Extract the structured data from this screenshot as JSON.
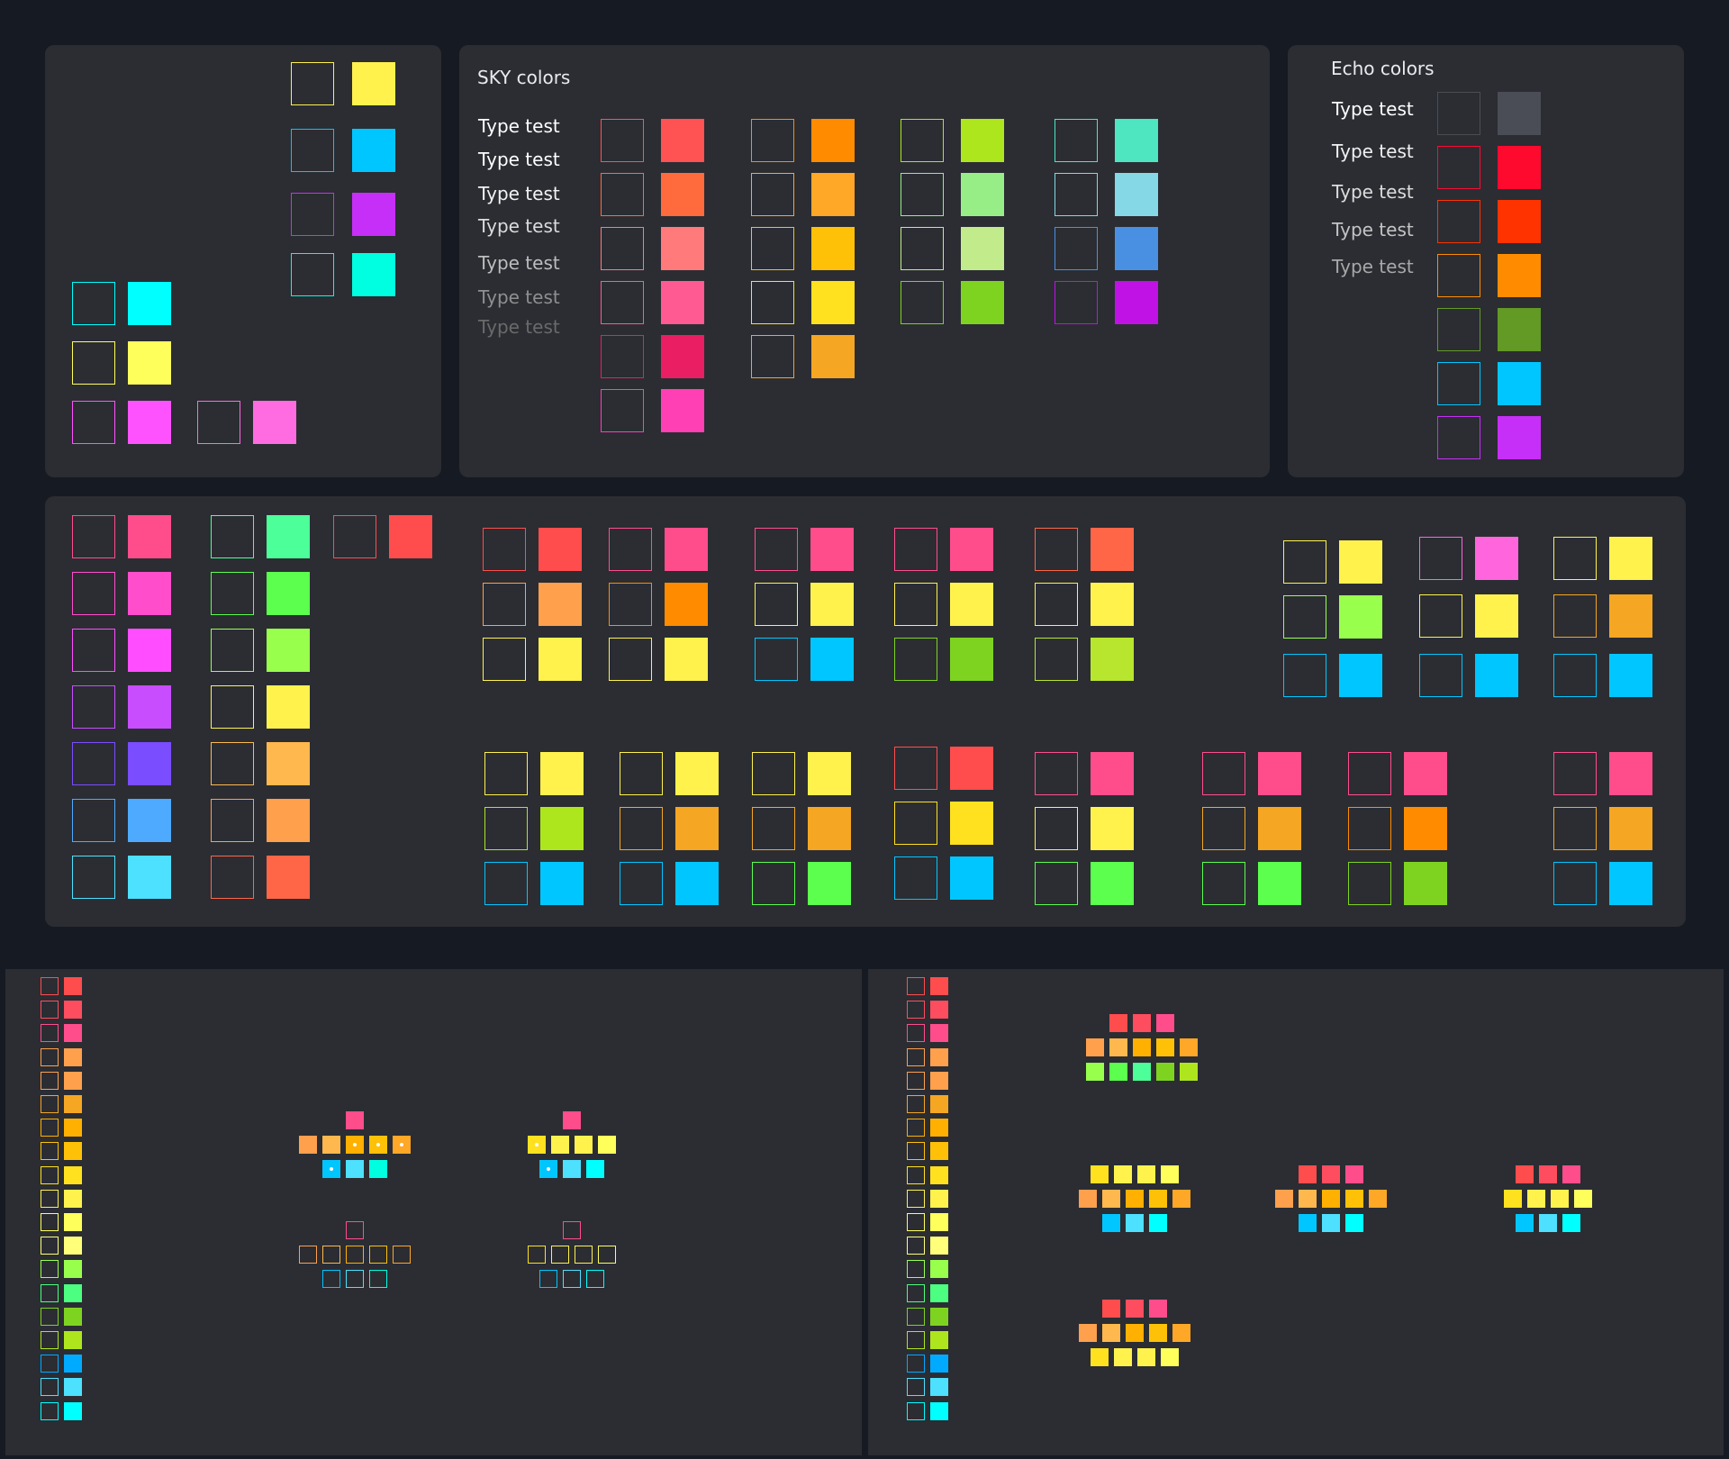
{
  "sky": {
    "title": "SKY colors",
    "labels": [
      {
        "text": "Type test",
        "color": "#ffffff"
      },
      {
        "text": "Type test",
        "color": "#ffffff"
      },
      {
        "text": "Type test",
        "color": "#f2f2f2"
      },
      {
        "text": "Type test",
        "color": "#dcdcdc"
      },
      {
        "text": "Type test",
        "color": "#bdbdbd"
      },
      {
        "text": "Type test",
        "color": "#8f8f8f"
      },
      {
        "text": "Type test",
        "color": "#6a6a6a"
      }
    ],
    "columns": [
      [
        "#ff5252",
        "#ff6b3d",
        "#ff7b7b",
        "#ff5a91",
        "#e91e63",
        "#ff40b4"
      ],
      [
        "#ff8c00",
        "#ffa726",
        "#ffc107",
        "#ffe11f",
        "#f5a623"
      ],
      [
        "#aee61e",
        "#98ee86",
        "#c2ec8c",
        "#7ed321"
      ],
      [
        "#4de6c1",
        "#85d8e5",
        "#4a90e2",
        "#c012e5"
      ]
    ]
  },
  "echo": {
    "title": "Echo colors",
    "labels": [
      {
        "text": "Type test",
        "color": "#ffffff"
      },
      {
        "text": "Type test",
        "color": "#f0f0f0"
      },
      {
        "text": "Type test",
        "color": "#dddddd"
      },
      {
        "text": "Type test",
        "color": "#c4c4c4"
      },
      {
        "text": "Type test",
        "color": "#a8a8a8"
      }
    ],
    "swatches": [
      "#4a4d55",
      "#ff0a2f",
      "#ff3300",
      "#ff8c00",
      "#629a25",
      "#00c6ff",
      "#c62ff7"
    ]
  },
  "topleft": {
    "column": [
      "#fff24d",
      "#00c6ff",
      "#c62ff7",
      "#00ffe0"
    ],
    "rows": [
      "#00ffff",
      "#ffff5c"
    ],
    "pair": [
      "#ff52ff",
      "#ff6be0"
    ]
  },
  "middle": {
    "col1": [
      "#ff4d8c",
      "#ff4dcc",
      "#ff4dff",
      "#c84dff",
      "#7a4dff",
      "#4daaff",
      "#4de0ff"
    ],
    "col2": [
      "#4dff99",
      "#5cff4d",
      "#99ff4d",
      "#fff24d",
      "#ffb84d",
      "#ffa04d",
      "#ff6647"
    ],
    "single": "#ff4d4d",
    "groups_top": [
      [
        "#ff4d4d",
        "#ffa04d",
        "#fff24d"
      ],
      [
        "#ff4d8c",
        "#ff8c00",
        "#fff24d"
      ],
      [
        "#ff4d8c",
        "#fff24d",
        "#00c6ff"
      ],
      [
        "#ff4d8c",
        "#fff24d",
        "#7ed321"
      ],
      [
        "#ff6647",
        "#fff24d",
        "#b8e62e"
      ],
      [
        "#fff24d",
        "#99ff4d",
        "#00c6ff"
      ],
      [
        "#ff66dd",
        "#fff24d",
        "#00c6ff"
      ],
      [
        "#fff24d",
        "#f5a623",
        "#00c6ff"
      ]
    ],
    "groups_bottom": [
      [
        "#fff24d",
        "#aee61e",
        "#00c6ff"
      ],
      [
        "#fff24d",
        "#f5a623",
        "#00c6ff"
      ],
      [
        "#fff24d",
        "#f5a623",
        "#5cff4d"
      ],
      [
        "#ff4d4d",
        "#ffe11f",
        "#00c6ff"
      ],
      [
        "#ff4d8c",
        "#fff24d",
        "#5cff4d"
      ],
      [
        "#ff4d8c",
        "#f5a623",
        "#5cff4d"
      ],
      [
        "#ff4d8c",
        "#ff8c00",
        "#7ed321"
      ],
      [
        "#ff4d8c",
        "#f5a623",
        "#00c6ff"
      ]
    ]
  },
  "strip": [
    "#ff4d4d",
    "#ff4d60",
    "#ff4d8c",
    "#ffa04d",
    "#ffa04d",
    "#f5a623",
    "#ffb000",
    "#ffc107",
    "#ffe11f",
    "#fff24d",
    "#ffff5c",
    "#ffff7a",
    "#99ff4d",
    "#4dff80",
    "#7ed321",
    "#aee61e",
    "#00aaff",
    "#4de0ff",
    "#00ffff"
  ],
  "clusters": {
    "left": [
      {
        "top": [
          "#ff4d8c"
        ],
        "mid": [
          "#ffa04d",
          "#ffb84d",
          "#ffb000",
          "#ffc107",
          "#ffa726"
        ],
        "bot": [
          "#00c6ff",
          "#4de0ff",
          "#00ffe0"
        ]
      },
      {
        "top": [
          "#ff4d8c"
        ],
        "mid": [
          "#ffe11f",
          "#fff24d",
          "#fff24d",
          "#ffff5c"
        ],
        "bot": [
          "#00c6ff",
          "#4de0ff",
          "#00ffff"
        ]
      }
    ],
    "right": [
      {
        "top": [
          "#ff4d4d",
          "#ff4d60",
          "#ff4d8c"
        ],
        "mid": [
          "#ffa04d",
          "#ffb84d",
          "#ffb000",
          "#ffc107",
          "#ffa726"
        ],
        "bot": [
          "#99ff4d",
          "#5cff4d",
          "#4dff99",
          "#7ed321",
          "#aee61e"
        ]
      },
      {
        "top": [
          "#ffe11f",
          "#fff24d",
          "#fff24d",
          "#ffff5c"
        ],
        "mid": [
          "#ffa04d",
          "#ffb84d",
          "#ffb000",
          "#ffc107",
          "#ffa726"
        ],
        "bot": [
          "#00c6ff",
          "#4de0ff",
          "#00ffff"
        ]
      },
      {
        "top": [
          "#ff4d4d",
          "#ff4d60",
          "#ff4d8c"
        ],
        "mid": [
          "#ffa04d",
          "#ffb84d",
          "#ffb000",
          "#ffc107",
          "#ffa726"
        ],
        "bot": [
          "#00c6ff",
          "#4de0ff",
          "#00ffff"
        ]
      },
      {
        "top": [
          "#ff4d4d",
          "#ff4d60",
          "#ff4d8c"
        ],
        "mid": [
          "#ffe11f",
          "#fff24d",
          "#fff24d",
          "#ffff5c"
        ],
        "bot": [
          "#00c6ff",
          "#4de0ff",
          "#00ffff"
        ]
      },
      {
        "top": [
          "#ff4d4d",
          "#ff4d60",
          "#ff4d8c"
        ],
        "mid": [
          "#ffa04d",
          "#ffb84d",
          "#ffb000",
          "#ffc107",
          "#ffa726"
        ],
        "bot": [
          "#ffe11f",
          "#fff24d",
          "#fff24d",
          "#ffff5c"
        ]
      }
    ]
  }
}
